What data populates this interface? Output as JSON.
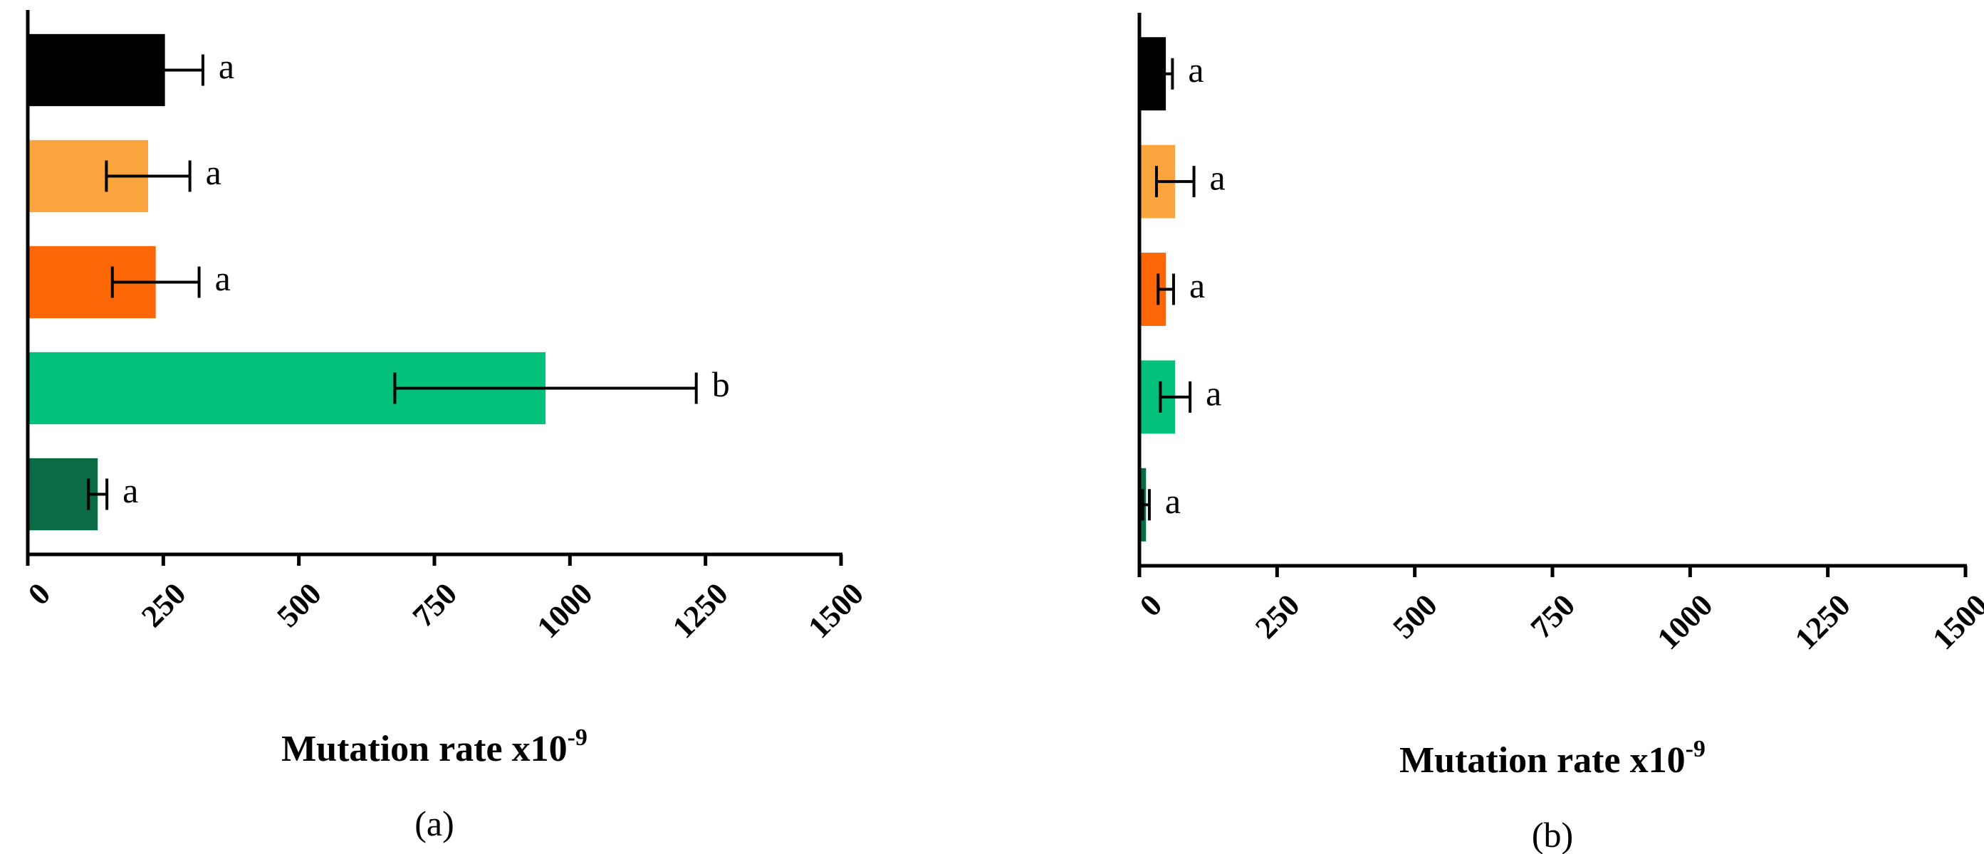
{
  "chart_data": [
    {
      "type": "bar",
      "orientation": "horizontal",
      "categories": [
        null,
        null,
        null,
        null,
        null
      ],
      "values": [
        253,
        222,
        236,
        955,
        129
      ],
      "errors": [
        70,
        77,
        80,
        278,
        17
      ],
      "colors": [
        "#000000",
        "#fba53f",
        "#fe6708",
        "#03c07a",
        "#0a6b45"
      ],
      "letters": [
        "a",
        "a",
        "a",
        "b",
        "a"
      ],
      "xlim": [
        0,
        1500
      ],
      "xticks": [
        0,
        250,
        500,
        750,
        1000,
        1250,
        1500
      ],
      "xlabel": "Mutation rate x10",
      "xlabel_exponent": "-9",
      "panel_label": "(a)"
    },
    {
      "type": "bar",
      "orientation": "horizontal",
      "categories": [
        null,
        null,
        null,
        null,
        null
      ],
      "values": [
        48,
        65,
        48,
        65,
        12
      ],
      "errors": [
        12,
        34,
        14,
        27,
        6
      ],
      "colors": [
        "#000000",
        "#fba53f",
        "#fe6708",
        "#03c07a",
        "#0a6b45"
      ],
      "letters": [
        "a",
        "a",
        "a",
        "a",
        "a"
      ],
      "xlim": [
        0,
        1500
      ],
      "xticks": [
        0,
        250,
        500,
        750,
        1000,
        1250,
        1500
      ],
      "xlabel": "Mutation rate x10",
      "xlabel_exponent": "-9",
      "panel_label": "(b)"
    }
  ]
}
